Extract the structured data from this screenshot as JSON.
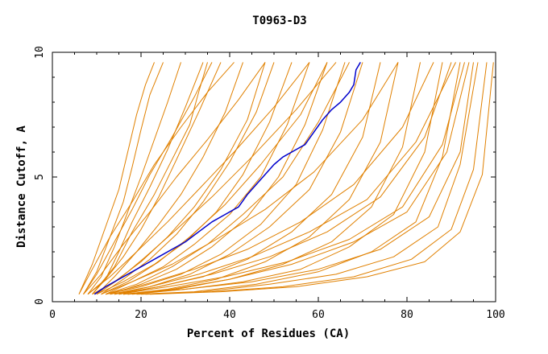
{
  "chart_data": {
    "type": "line",
    "title": "T0963-D3",
    "xlabel": "Percent of Residues (CA)",
    "ylabel": "Distance Cutoff, A",
    "xlim": [
      0,
      100
    ],
    "ylim": [
      0,
      10
    ],
    "x_ticks": [
      "0",
      "20",
      "40",
      "60",
      "80",
      "100"
    ],
    "y_ticks": [
      "0",
      "5",
      "10"
    ],
    "grid": false,
    "background_color": "#ffffff",
    "highlight_color": "#0000cc",
    "other_color": "#e08000",
    "highlight_series": {
      "x": [
        9.5,
        12,
        15,
        18,
        21,
        24,
        27,
        30,
        33,
        36,
        39,
        42,
        44,
        46,
        48,
        50,
        52,
        55,
        57,
        59,
        61,
        63,
        65,
        67,
        68,
        68.5,
        69.5
      ],
      "y": [
        0.3,
        0.6,
        0.9,
        1.2,
        1.5,
        1.8,
        2.1,
        2.4,
        2.8,
        3.2,
        3.5,
        3.8,
        4.3,
        4.7,
        5.1,
        5.5,
        5.8,
        6.1,
        6.3,
        6.8,
        7.3,
        7.7,
        8.0,
        8.4,
        8.7,
        9.3,
        9.6
      ]
    },
    "other_series": [
      {
        "x": [
          6,
          9,
          12,
          15,
          17,
          19,
          21,
          23
        ],
        "y": [
          0.3,
          1.5,
          3.0,
          4.5,
          6.0,
          7.5,
          8.7,
          9.6
        ]
      },
      {
        "x": [
          7,
          10,
          13,
          16,
          18,
          20,
          22,
          25
        ],
        "y": [
          0.3,
          1.2,
          2.6,
          4.0,
          5.4,
          6.9,
          8.3,
          9.6
        ]
      },
      {
        "x": [
          8,
          11,
          14,
          17,
          20,
          23,
          26,
          29
        ],
        "y": [
          0.3,
          1.0,
          2.2,
          3.6,
          5.0,
          6.5,
          8.0,
          9.6
        ]
      },
      {
        "x": [
          9,
          12,
          15,
          18,
          22,
          26,
          30,
          34
        ],
        "y": [
          0.3,
          0.9,
          2.0,
          3.2,
          4.6,
          6.1,
          7.8,
          9.6
        ]
      },
      {
        "x": [
          8,
          12,
          16,
          20,
          24,
          28,
          33,
          38
        ],
        "y": [
          0.3,
          0.9,
          1.8,
          2.9,
          4.2,
          5.7,
          7.6,
          9.6
        ]
      },
      {
        "x": [
          7,
          10,
          14,
          18,
          22,
          27,
          32,
          36
        ],
        "y": [
          0.3,
          1.1,
          2.4,
          3.7,
          5.1,
          6.6,
          8.2,
          9.6
        ]
      },
      {
        "x": [
          10,
          14,
          19,
          24,
          29,
          34,
          39,
          43
        ],
        "y": [
          0.3,
          1.0,
          2.0,
          3.1,
          4.3,
          5.8,
          7.6,
          9.6
        ]
      },
      {
        "x": [
          9,
          14,
          20,
          26,
          32,
          38,
          44,
          48
        ],
        "y": [
          0.3,
          0.8,
          1.6,
          2.6,
          3.8,
          5.3,
          7.3,
          9.6
        ]
      },
      {
        "x": [
          11,
          16,
          22,
          28,
          34,
          40,
          46,
          50
        ],
        "y": [
          0.3,
          0.9,
          1.7,
          2.7,
          4.0,
          5.6,
          7.6,
          9.6
        ]
      },
      {
        "x": [
          10,
          16,
          23,
          30,
          37,
          43,
          49,
          54
        ],
        "y": [
          0.3,
          0.8,
          1.5,
          2.4,
          3.6,
          5.1,
          7.2,
          9.6
        ]
      },
      {
        "x": [
          12,
          18,
          25,
          32,
          40,
          47,
          53,
          58
        ],
        "y": [
          0.3,
          0.8,
          1.4,
          2.3,
          3.5,
          5.0,
          7.1,
          9.6
        ]
      },
      {
        "x": [
          13,
          20,
          28,
          36,
          44,
          51,
          57,
          62
        ],
        "y": [
          0.3,
          0.7,
          1.3,
          2.2,
          3.4,
          5.0,
          7.1,
          9.6
        ]
      },
      {
        "x": [
          12,
          20,
          29,
          38,
          47,
          55,
          61,
          66
        ],
        "y": [
          0.3,
          0.6,
          1.1,
          1.9,
          3.1,
          4.7,
          6.9,
          9.6
        ]
      },
      {
        "x": [
          14,
          22,
          31,
          40,
          49,
          58,
          65,
          70
        ],
        "y": [
          0.3,
          0.6,
          1.1,
          1.9,
          3.0,
          4.5,
          6.8,
          9.6
        ]
      },
      {
        "x": [
          15,
          24,
          34,
          44,
          54,
          63,
          70,
          74
        ],
        "y": [
          0.3,
          0.6,
          1.0,
          1.7,
          2.8,
          4.3,
          6.6,
          9.6
        ]
      },
      {
        "x": [
          16,
          26,
          37,
          48,
          58,
          67,
          74,
          78
        ],
        "y": [
          0.3,
          0.5,
          0.9,
          1.6,
          2.6,
          4.1,
          6.4,
          9.6
        ]
      },
      {
        "x": [
          17,
          28,
          40,
          52,
          63,
          72,
          79,
          83
        ],
        "y": [
          0.3,
          0.5,
          0.9,
          1.5,
          2.4,
          3.8,
          6.2,
          9.6
        ]
      },
      {
        "x": [
          18,
          30,
          43,
          56,
          67,
          77,
          84,
          88
        ],
        "y": [
          0.3,
          0.5,
          0.8,
          1.3,
          2.2,
          3.5,
          6.0,
          9.6
        ]
      },
      {
        "x": [
          19,
          32,
          46,
          60,
          72,
          82,
          88,
          92
        ],
        "y": [
          0.3,
          0.4,
          0.7,
          1.2,
          2.0,
          3.2,
          5.8,
          9.6
        ]
      },
      {
        "x": [
          20,
          34,
          49,
          64,
          77,
          87,
          92,
          96
        ],
        "y": [
          0.3,
          0.4,
          0.7,
          1.1,
          1.8,
          3.0,
          5.5,
          9.6
        ]
      },
      {
        "x": [
          21,
          36,
          52,
          68,
          81,
          90,
          95,
          98
        ],
        "y": [
          0.3,
          0.4,
          0.6,
          1.0,
          1.7,
          2.9,
          5.3,
          9.6
        ]
      },
      {
        "x": [
          22,
          38,
          55,
          71,
          84,
          92,
          97,
          99.5
        ],
        "y": [
          0.3,
          0.4,
          0.6,
          1.0,
          1.6,
          2.8,
          5.1,
          9.6
        ]
      },
      {
        "x": [
          17,
          30,
          45,
          60,
          74,
          85,
          92,
          95
        ],
        "y": [
          0.3,
          0.5,
          0.8,
          1.3,
          2.1,
          3.4,
          6.0,
          9.6
        ]
      },
      {
        "x": [
          15,
          26,
          39,
          53,
          67,
          79,
          88,
          93
        ],
        "y": [
          0.3,
          0.6,
          1.0,
          1.6,
          2.5,
          3.8,
          6.3,
          9.6
        ]
      },
      {
        "x": [
          14,
          24,
          36,
          49,
          62,
          74,
          84,
          90
        ],
        "y": [
          0.3,
          0.6,
          1.1,
          1.8,
          2.8,
          4.2,
          6.6,
          9.6
        ]
      },
      {
        "x": [
          12,
          21,
          32,
          44,
          56,
          68,
          79,
          86
        ],
        "y": [
          0.3,
          0.7,
          1.3,
          2.1,
          3.2,
          4.7,
          7.0,
          9.6
        ]
      },
      {
        "x": [
          11,
          18,
          27,
          37,
          48,
          59,
          70,
          78
        ],
        "y": [
          0.3,
          0.8,
          1.5,
          2.5,
          3.7,
          5.2,
          7.3,
          9.6
        ]
      },
      {
        "x": [
          8,
          13,
          19,
          26,
          33,
          41,
          50,
          58
        ],
        "y": [
          0.3,
          1.0,
          2.0,
          3.2,
          4.5,
          6.0,
          7.8,
          9.6
        ]
      },
      {
        "x": [
          7,
          11,
          16,
          22,
          28,
          35,
          42,
          48
        ],
        "y": [
          0.3,
          1.1,
          2.3,
          3.6,
          5.0,
          6.5,
          8.1,
          9.6
        ]
      },
      {
        "x": [
          6,
          9,
          13,
          18,
          23,
          29,
          35,
          41
        ],
        "y": [
          0.3,
          1.3,
          2.6,
          4.0,
          5.5,
          7.0,
          8.4,
          9.6
        ]
      },
      {
        "x": [
          13,
          22,
          33,
          45,
          58,
          71,
          82,
          91
        ],
        "y": [
          0.3,
          0.6,
          1.1,
          1.8,
          2.8,
          4.1,
          6.4,
          9.6
        ]
      },
      {
        "x": [
          16,
          27,
          40,
          54,
          68,
          80,
          89,
          94
        ],
        "y": [
          0.3,
          0.5,
          0.9,
          1.5,
          2.4,
          3.6,
          6.0,
          9.6
        ]
      },
      {
        "x": [
          10,
          15,
          21,
          28,
          36,
          45,
          55,
          64
        ],
        "y": [
          0.3,
          0.9,
          1.8,
          2.9,
          4.2,
          5.8,
          7.7,
          9.6
        ]
      },
      {
        "x": [
          9,
          14,
          18,
          23,
          27,
          31,
          33,
          35
        ],
        "y": [
          0.3,
          1.4,
          2.8,
          4.3,
          5.7,
          7.1,
          8.4,
          9.6
        ]
      },
      {
        "x": [
          11,
          17,
          24,
          31,
          39,
          47,
          56,
          62
        ],
        "y": [
          0.3,
          0.8,
          1.6,
          2.6,
          3.9,
          5.5,
          7.5,
          9.6
        ]
      },
      {
        "x": [
          12,
          19,
          27,
          35,
          43,
          52,
          60,
          67
        ],
        "y": [
          0.3,
          0.7,
          1.4,
          2.3,
          3.5,
          5.0,
          7.2,
          9.6
        ]
      }
    ]
  }
}
